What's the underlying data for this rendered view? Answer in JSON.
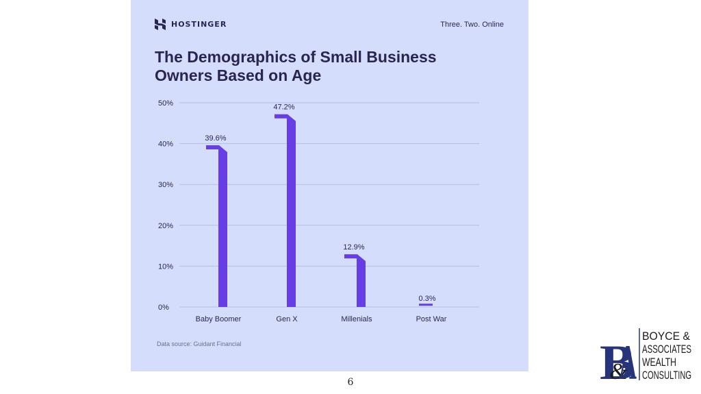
{
  "brand": {
    "name": "HOSTINGER",
    "tagline": "Three. Two. Online",
    "accent": "#673de6",
    "text_color": "#2b2452",
    "background": "#d4defc"
  },
  "chart_data": {
    "type": "bar",
    "title": "The Demographics of Small Business Owners Based on Age",
    "categories": [
      "Baby Boomer",
      "Gen X",
      "Millenials",
      "Post War"
    ],
    "values": [
      39.6,
      47.2,
      12.9,
      0.3
    ],
    "value_labels": [
      "39.6%",
      "47.2%",
      "12.9%",
      "0.3%"
    ],
    "ylim": [
      0,
      50
    ],
    "yticks": [
      0,
      10,
      20,
      30,
      40,
      50
    ],
    "ytick_labels": [
      "0%",
      "10%",
      "20%",
      "30%",
      "40%",
      "50%"
    ],
    "xlabel": "",
    "ylabel": "",
    "grid": true
  },
  "source": "Data source: Guidant Financial",
  "page_number": "6",
  "firm_logo": {
    "monogram": "B&A",
    "lines": [
      "BOYCE &",
      "ASSOCIATES",
      "WEALTH",
      "CONSULTING"
    ]
  }
}
